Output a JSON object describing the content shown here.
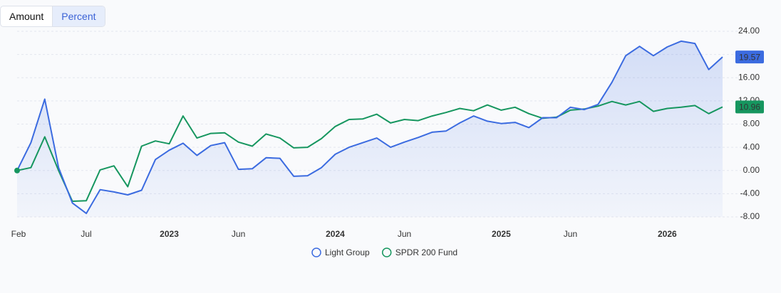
{
  "tabs": [
    "Amount",
    "Percent"
  ],
  "active_tab": 1,
  "chart_data": {
    "type": "line",
    "categories": [
      "Feb",
      null,
      null,
      null,
      null,
      "Jul",
      null,
      null,
      null,
      null,
      null,
      "2023",
      null,
      null,
      null,
      null,
      "Jun",
      null,
      null,
      null,
      null,
      null,
      null,
      "2024",
      null,
      null,
      null,
      null,
      "Jun",
      null,
      null,
      null,
      null,
      null,
      null,
      "2025",
      null,
      null,
      null,
      null,
      "Jun",
      null,
      null,
      null,
      null,
      null,
      null,
      "2026",
      null,
      null,
      null,
      null
    ],
    "series": [
      {
        "name": "Light Group",
        "color": "#3b6be0",
        "area": true,
        "values": [
          0,
          4.8,
          12.3,
          0.5,
          -5.6,
          -7.4,
          -3.3,
          -3.7,
          -4.2,
          -3.4,
          1.9,
          3.5,
          4.7,
          2.6,
          4.3,
          4.8,
          0.2,
          0.3,
          2.2,
          2.1,
          -1.0,
          -0.9,
          0.5,
          2.8,
          4.0,
          4.8,
          5.6,
          4.0,
          4.9,
          5.7,
          6.6,
          6.8,
          8.2,
          9.4,
          8.5,
          8.1,
          8.3,
          7.4,
          9.1,
          9.1,
          10.9,
          10.5,
          11.4,
          15.2,
          19.8,
          21.4,
          19.8,
          21.3,
          22.3,
          21.9,
          17.4,
          19.57
        ]
      },
      {
        "name": "SPDR 200 Fund",
        "color": "#16965f",
        "area": false,
        "values": [
          0,
          0.5,
          5.8,
          0,
          -5.3,
          -5.2,
          0.1,
          0.8,
          -2.8,
          4.2,
          5.1,
          4.6,
          9.4,
          5.6,
          6.4,
          6.5,
          4.9,
          4.2,
          6.3,
          5.6,
          3.9,
          4.0,
          5.5,
          7.6,
          8.8,
          8.9,
          9.7,
          8.2,
          8.8,
          8.6,
          9.4,
          10.0,
          10.7,
          10.3,
          11.3,
          10.4,
          10.9,
          9.8,
          9.0,
          9.2,
          10.4,
          10.6,
          11.1,
          11.9,
          11.3,
          11.9,
          10.2,
          10.7,
          10.9,
          11.2,
          9.8,
          10.96
        ]
      }
    ],
    "ylim": [
      -8,
      24
    ],
    "yticks": [
      {
        "value": -8,
        "label": "-8.00"
      },
      {
        "value": -4,
        "label": "-4.00"
      },
      {
        "value": 0,
        "label": "0.00"
      },
      {
        "value": 4,
        "label": "4.00"
      },
      {
        "value": 8,
        "label": "8.00"
      },
      {
        "value": 12,
        "label": "12.00"
      },
      {
        "value": 16,
        "label": "16.00"
      },
      {
        "value": 20,
        "label": "20.00"
      },
      {
        "value": 24,
        "label": "24.00"
      }
    ],
    "grid": true,
    "legend": "bottom"
  }
}
